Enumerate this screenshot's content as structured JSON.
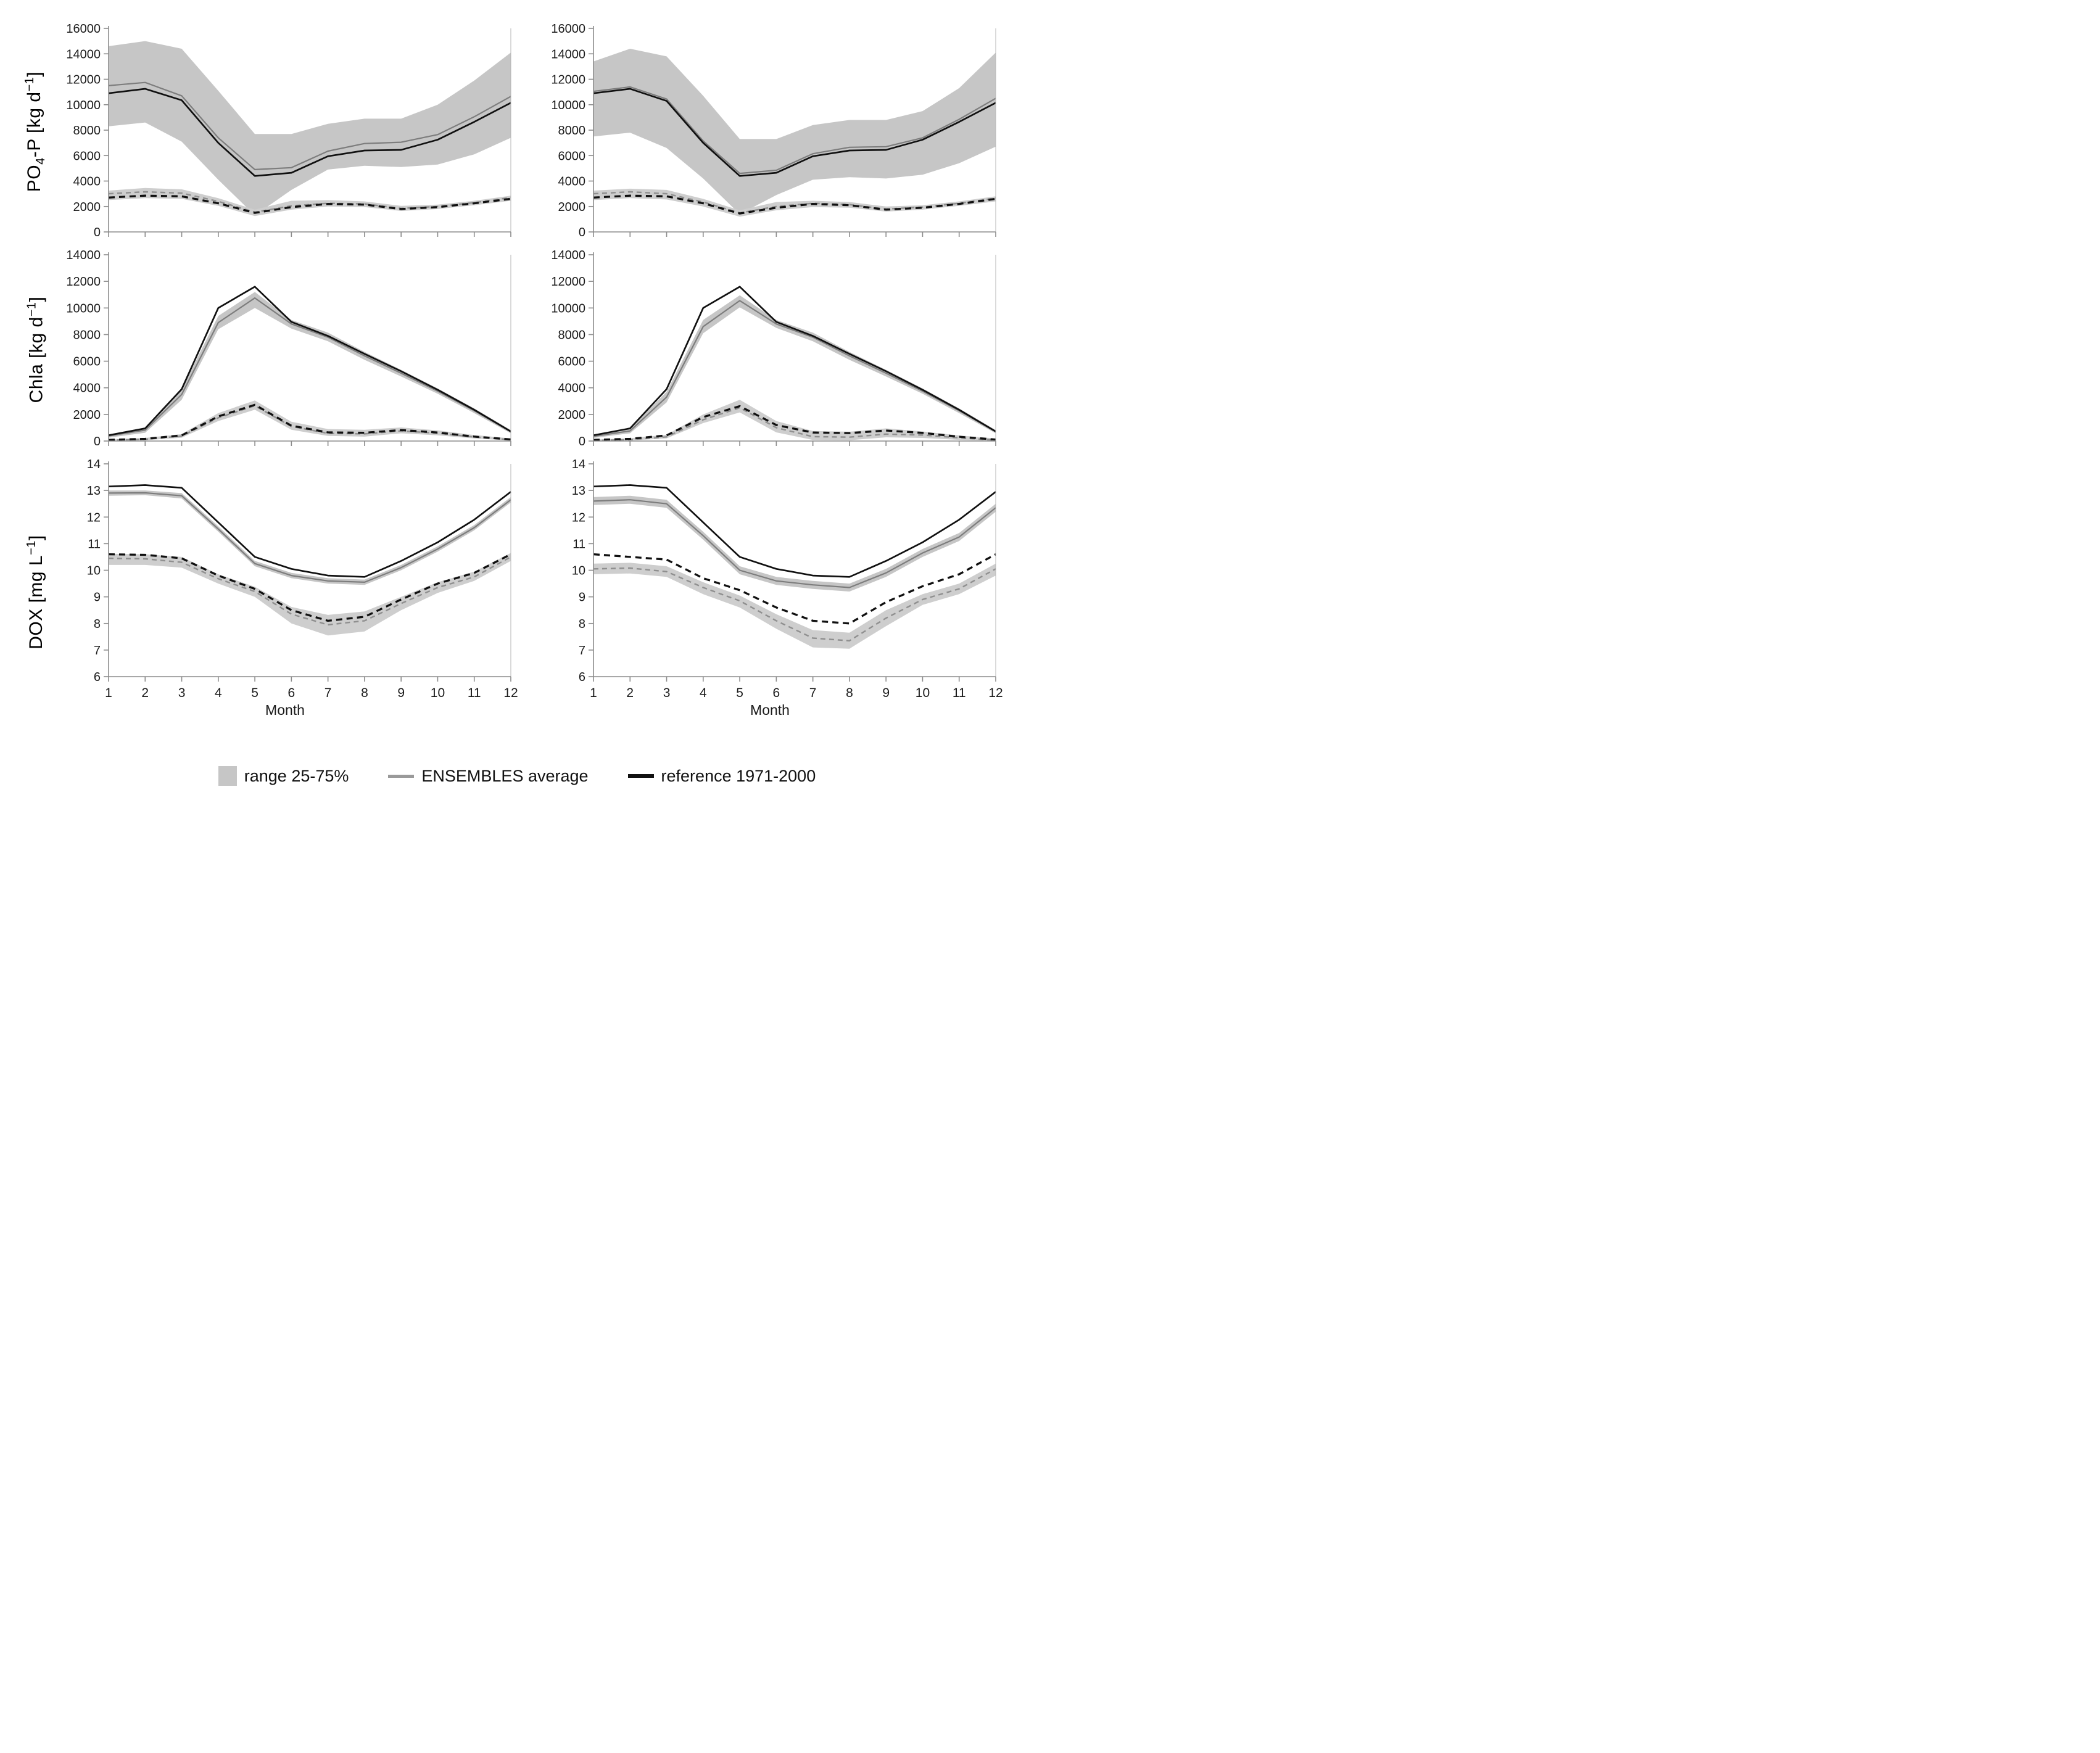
{
  "figure": {
    "background": "#ffffff"
  },
  "colors": {
    "band": "#c6c6c6",
    "band_secondary": "#cecece",
    "ensembles_line": "#7d7d7d",
    "reference_line": "#101010",
    "ensembles_dashed_line": "#8f8f8f",
    "reference_dashed_line": "#101010",
    "axis": "#8c8c8c",
    "plot_right_border": "#b4b4b4",
    "tick_text": "#1a1a1a"
  },
  "axis": {
    "x_label": "Month",
    "x_ticks": [
      1,
      2,
      3,
      4,
      5,
      6,
      7,
      8,
      9,
      10,
      11,
      12
    ]
  },
  "rows": [
    {
      "key": "po4",
      "label_text": "PO4-P [kg d-1]",
      "label_parts": [
        {
          "t": "PO"
        },
        {
          "sub": "4"
        },
        {
          "t": "-P [kg d"
        },
        {
          "sup": "−1"
        },
        {
          "t": "]"
        }
      ],
      "ylim": [
        0,
        16000
      ],
      "ytick_step": 2000
    },
    {
      "key": "chla",
      "label_text": "Chla [kg d-1]",
      "label_parts": [
        {
          "t": "Chla [kg d"
        },
        {
          "sup": "−1"
        },
        {
          "t": "]"
        }
      ],
      "ylim": [
        0,
        14000
      ],
      "ytick_step": 2000
    },
    {
      "key": "dox",
      "label_text": "DOX [mg L-1]",
      "label_parts": [
        {
          "t": "DOX [mg L"
        },
        {
          "sup": "−1"
        },
        {
          "t": "]"
        }
      ],
      "ylim": [
        6,
        14
      ],
      "ytick_step": 1
    }
  ],
  "legend": {
    "items": [
      {
        "swatch": "box",
        "label": "range 25-75%"
      },
      {
        "swatch": "gray-line",
        "label": "ENSEMBLES average"
      },
      {
        "swatch": "black-line",
        "label": "reference 1971-2000"
      }
    ]
  },
  "chart_data": [
    {
      "id": "po4-left",
      "type": "line+area",
      "row": "po4",
      "col": 0,
      "show_x_labels": false,
      "x": [
        1,
        2,
        3,
        4,
        5,
        6,
        7,
        8,
        9,
        10,
        11,
        12
      ],
      "series": {
        "range_upper": [
          14600,
          15000,
          14400,
          11100,
          7700,
          7700,
          8500,
          8900,
          8900,
          10000,
          11900,
          14100
        ],
        "range_lower": [
          8300,
          8600,
          7100,
          4100,
          1300,
          3300,
          4900,
          5200,
          5100,
          5300,
          6100,
          7400
        ],
        "ensembles": [
          11500,
          11750,
          10700,
          7400,
          4900,
          5050,
          6350,
          6950,
          7050,
          7650,
          9050,
          10650
        ],
        "reference": [
          10900,
          11250,
          10350,
          7000,
          4400,
          4650,
          5950,
          6400,
          6450,
          7250,
          8650,
          10150
        ],
        "range2_upper": [
          3250,
          3450,
          3350,
          2650,
          1750,
          2450,
          2500,
          2400,
          2050,
          2150,
          2450,
          2850
        ],
        "range2_lower": [
          2500,
          2650,
          2600,
          2050,
          1250,
          1750,
          2000,
          1950,
          1650,
          1800,
          2100,
          2450
        ],
        "ensembles_dashed": [
          3000,
          3150,
          3050,
          2400,
          1550,
          2050,
          2250,
          2200,
          1850,
          2000,
          2300,
          2700
        ],
        "reference_dashed": [
          2700,
          2850,
          2800,
          2250,
          1500,
          1950,
          2200,
          2150,
          1800,
          1950,
          2250,
          2600
        ]
      }
    },
    {
      "id": "po4-right",
      "type": "line+area",
      "row": "po4",
      "col": 1,
      "show_x_labels": false,
      "x": [
        1,
        2,
        3,
        4,
        5,
        6,
        7,
        8,
        9,
        10,
        11,
        12
      ],
      "series": {
        "range_upper": [
          13400,
          14400,
          13800,
          10700,
          7300,
          7300,
          8400,
          8800,
          8800,
          9500,
          11300,
          14100
        ],
        "range_lower": [
          7500,
          7800,
          6600,
          4200,
          1400,
          2900,
          4100,
          4300,
          4200,
          4500,
          5400,
          6700
        ],
        "ensembles": [
          11050,
          11400,
          10450,
          7150,
          4600,
          4850,
          6150,
          6650,
          6700,
          7400,
          8850,
          10500
        ],
        "reference": [
          10900,
          11250,
          10300,
          7000,
          4400,
          4650,
          5950,
          6400,
          6450,
          7250,
          8650,
          10150
        ],
        "range2_upper": [
          3250,
          3400,
          3300,
          2600,
          1700,
          2350,
          2450,
          2350,
          2000,
          2100,
          2400,
          2800
        ],
        "range2_lower": [
          2500,
          2650,
          2550,
          2000,
          1200,
          1700,
          1950,
          1900,
          1600,
          1750,
          2050,
          2400
        ],
        "ensembles_dashed": [
          3000,
          3150,
          3000,
          2350,
          1500,
          2000,
          2250,
          2150,
          1800,
          1950,
          2250,
          2650
        ],
        "reference_dashed": [
          2700,
          2850,
          2800,
          2250,
          1450,
          1900,
          2200,
          2100,
          1750,
          1900,
          2200,
          2600
        ]
      }
    },
    {
      "id": "chla-left",
      "type": "line+area",
      "row": "chla",
      "col": 0,
      "show_x_labels": false,
      "x": [
        1,
        2,
        3,
        4,
        5,
        6,
        7,
        8,
        9,
        10,
        11,
        12
      ],
      "series": {
        "range_upper": [
          500,
          1000,
          3900,
          9400,
          11200,
          9100,
          8150,
          6700,
          5350,
          3950,
          2450,
          820
        ],
        "range_lower": [
          250,
          620,
          3100,
          8400,
          10000,
          8450,
          7500,
          6100,
          4850,
          3550,
          2100,
          580
        ],
        "ensembles": [
          380,
          820,
          3500,
          8900,
          10750,
          8800,
          7800,
          6400,
          5100,
          3750,
          2280,
          700
        ],
        "reference": [
          430,
          950,
          3900,
          10000,
          11600,
          8950,
          7900,
          6550,
          5250,
          3850,
          2350,
          720
        ],
        "range2_upper": [
          130,
          230,
          520,
          2100,
          3050,
          1450,
          900,
          850,
          1020,
          800,
          450,
          200
        ],
        "range2_lower": [
          20,
          60,
          250,
          1500,
          2350,
          850,
          380,
          330,
          580,
          430,
          190,
          40
        ],
        "ensembles_dashed": [
          60,
          130,
          370,
          1750,
          2650,
          1100,
          580,
          540,
          760,
          590,
          300,
          100
        ],
        "reference_dashed": [
          90,
          160,
          420,
          1850,
          2720,
          1150,
          650,
          620,
          820,
          640,
          330,
          120
        ]
      }
    },
    {
      "id": "chla-right",
      "type": "line+area",
      "row": "chla",
      "col": 1,
      "show_x_labels": false,
      "x": [
        1,
        2,
        3,
        4,
        5,
        6,
        7,
        8,
        9,
        10,
        11,
        12
      ],
      "series": {
        "range_upper": [
          480,
          950,
          3700,
          9100,
          10950,
          9100,
          8150,
          6700,
          5350,
          3950,
          2450,
          820
        ],
        "range_lower": [
          230,
          580,
          2900,
          8100,
          10050,
          8500,
          7500,
          6100,
          4850,
          3550,
          2100,
          580
        ],
        "ensembles": [
          350,
          760,
          3300,
          8600,
          10550,
          8800,
          7800,
          6400,
          5100,
          3750,
          2280,
          700
        ],
        "reference": [
          430,
          950,
          3900,
          10000,
          11600,
          8950,
          7900,
          6550,
          5250,
          3850,
          2350,
          720
        ],
        "range2_upper": [
          110,
          210,
          470,
          2000,
          3100,
          1500,
          750,
          700,
          950,
          720,
          420,
          190
        ],
        "range2_lower": [
          10,
          40,
          200,
          1350,
          2150,
          650,
          80,
          60,
          280,
          230,
          90,
          10
        ],
        "ensembles_dashed": [
          40,
          100,
          310,
          1600,
          2500,
          1000,
          330,
          290,
          520,
          450,
          240,
          70
        ],
        "reference_dashed": [
          90,
          160,
          420,
          1800,
          2620,
          1200,
          640,
          600,
          790,
          610,
          320,
          110
        ]
      }
    },
    {
      "id": "dox-left",
      "type": "line+area",
      "row": "dox",
      "col": 0,
      "show_x_labels": true,
      "x": [
        1,
        2,
        3,
        4,
        5,
        6,
        7,
        8,
        9,
        10,
        11,
        12
      ],
      "series": {
        "range_upper": [
          13.0,
          13.0,
          12.9,
          11.65,
          10.35,
          9.9,
          9.7,
          9.65,
          10.2,
          10.9,
          11.7,
          12.75
        ],
        "range_lower": [
          12.8,
          12.82,
          12.7,
          11.45,
          10.15,
          9.7,
          9.5,
          9.45,
          10.0,
          10.7,
          11.5,
          12.55
        ],
        "ensembles": [
          12.9,
          12.91,
          12.8,
          11.55,
          10.25,
          9.8,
          9.6,
          9.55,
          10.1,
          10.8,
          11.6,
          12.65
        ],
        "reference": [
          13.15,
          13.2,
          13.1,
          11.8,
          10.5,
          10.05,
          9.8,
          9.75,
          10.35,
          11.05,
          11.9,
          12.95
        ],
        "range2_upper": [
          10.62,
          10.6,
          10.5,
          9.85,
          9.38,
          8.62,
          8.32,
          8.45,
          9.0,
          9.55,
          9.95,
          10.65
        ],
        "range2_lower": [
          10.2,
          10.2,
          10.1,
          9.5,
          9.0,
          8.0,
          7.55,
          7.7,
          8.5,
          9.15,
          9.6,
          10.35
        ],
        "ensembles_dashed": [
          10.45,
          10.43,
          10.3,
          9.68,
          9.2,
          8.35,
          7.95,
          8.1,
          8.75,
          9.35,
          9.75,
          10.5
        ],
        "reference_dashed": [
          10.6,
          10.58,
          10.45,
          9.8,
          9.3,
          8.5,
          8.1,
          8.25,
          8.9,
          9.5,
          9.9,
          10.6
        ]
      }
    },
    {
      "id": "dox-right",
      "type": "line+area",
      "row": "dox",
      "col": 1,
      "show_x_labels": true,
      "x": [
        1,
        2,
        3,
        4,
        5,
        6,
        7,
        8,
        9,
        10,
        11,
        12
      ],
      "series": {
        "range_upper": [
          12.75,
          12.8,
          12.65,
          11.45,
          10.15,
          9.75,
          9.6,
          9.5,
          10.05,
          10.8,
          11.4,
          12.5
        ],
        "range_lower": [
          12.45,
          12.5,
          12.35,
          11.15,
          9.85,
          9.45,
          9.3,
          9.2,
          9.75,
          10.5,
          11.1,
          12.2
        ],
        "ensembles": [
          12.6,
          12.65,
          12.5,
          11.3,
          10.0,
          9.6,
          9.45,
          9.35,
          9.9,
          10.65,
          11.25,
          12.35
        ],
        "reference": [
          13.15,
          13.2,
          13.1,
          11.8,
          10.5,
          10.05,
          9.8,
          9.75,
          10.35,
          11.05,
          11.9,
          12.95
        ],
        "range2_upper": [
          10.25,
          10.28,
          10.15,
          9.55,
          9.05,
          8.35,
          7.75,
          7.65,
          8.5,
          9.1,
          9.5,
          10.25
        ],
        "range2_lower": [
          9.85,
          9.88,
          9.75,
          9.1,
          8.6,
          7.8,
          7.1,
          7.05,
          7.9,
          8.7,
          9.1,
          9.8
        ],
        "ensembles_dashed": [
          10.05,
          10.08,
          9.95,
          9.35,
          8.85,
          8.1,
          7.45,
          7.35,
          8.2,
          8.9,
          9.3,
          10.05
        ],
        "reference_dashed": [
          10.6,
          10.5,
          10.4,
          9.7,
          9.25,
          8.6,
          8.1,
          8.0,
          8.8,
          9.4,
          9.85,
          10.6
        ]
      }
    }
  ]
}
